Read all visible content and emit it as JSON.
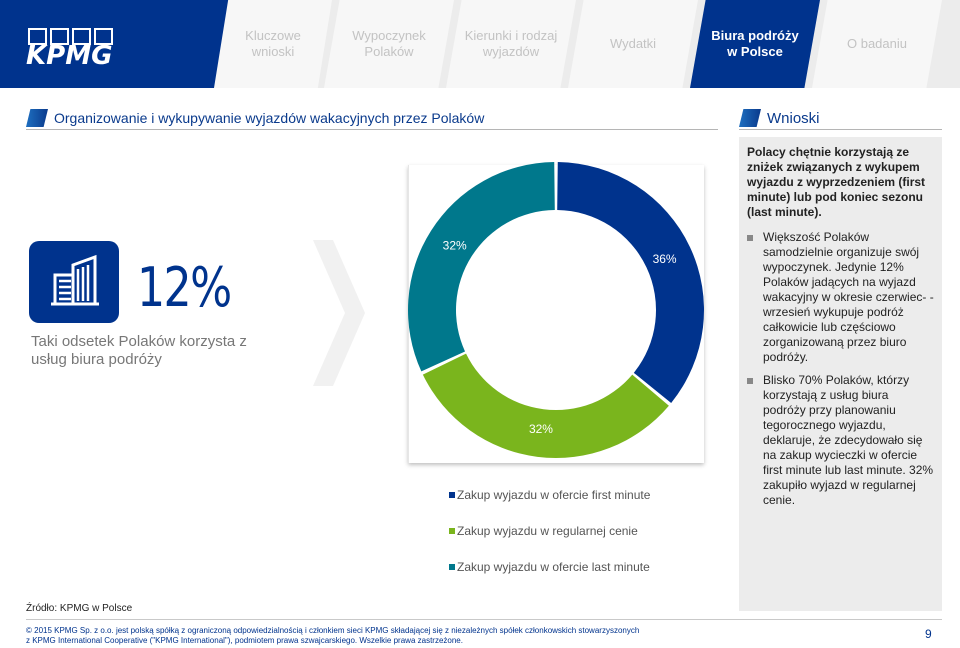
{
  "brand": {
    "logo_text": "KPMG",
    "primary": "#00338d"
  },
  "nav": {
    "tabs": [
      {
        "label": "Kluczowe wnioski"
      },
      {
        "label": "Wypoczynek Polaków"
      },
      {
        "label": "Kierunki i rodzaj wyjazdów"
      },
      {
        "label": "Wydatki"
      },
      {
        "label": "Biura podróży w Polsce"
      },
      {
        "label": "O badaniu"
      }
    ],
    "active": "Biura podróży w Polsce"
  },
  "left_section": {
    "title": "Organizowanie i wykupywanie wyjazdów wakacyjnych przez Polaków"
  },
  "right_section": {
    "title": "Wnioski"
  },
  "stat": {
    "icon": "building-icon",
    "value": "12%",
    "caption": "Taki odsetek Polaków korzysta z usług biura podróży"
  },
  "chart_data": {
    "type": "pie",
    "donut": true,
    "title": "",
    "slices": [
      {
        "label": "Zakup wyjazdu w ofercie first minute",
        "value": 36,
        "value_label": "36%",
        "color": "#00338d"
      },
      {
        "label": "Zakup wyjazdu w regularnej cenie",
        "value": 32,
        "value_label": "32%",
        "color": "#7ab51d"
      },
      {
        "label": "Zakup wyjazdu w ofercie last minute",
        "value": 32,
        "value_label": "32%",
        "color": "#00788c"
      }
    ],
    "legend_position": "bottom"
  },
  "conclusions": {
    "lead": "Polacy chętnie korzystają ze zniżek związanych z wykupem wyjazdu z wyprzedzeniem (first minute) lub pod koniec sezonu (last minute).",
    "bullets": [
      "Większość Polaków samodzielnie organizuje swój wypoczynek. Jedynie 12% Polaków jadących na wyjazd wakacyjny w okresie czerwiec- -wrzesień wykupuje podróż całkowicie lub częściowo zorganizowaną przez biuro podróży.",
      "Blisko 70% Polaków, którzy korzystają z usług biura podróży przy planowaniu tegorocznego wyjazdu, deklaruje, że zdecydowało się na zakup wycieczki w ofercie first minute lub last minute. 32% zakupiło wyjazd w regularnej cenie."
    ]
  },
  "source": "Źródło: KPMG w Polsce",
  "footer": {
    "line1": "© 2015 KPMG Sp. z o.o. jest polską spółką z ograniczoną odpowiedzialnością i członkiem sieci KPMG składającej się z niezależnych spółek członkowskich stowarzyszonych",
    "line2": "z KPMG International Cooperative (\"KPMG International\"), podmiotem prawa szwajcarskiego. Wszelkie prawa zastrzeżone.",
    "page_number": "9"
  }
}
